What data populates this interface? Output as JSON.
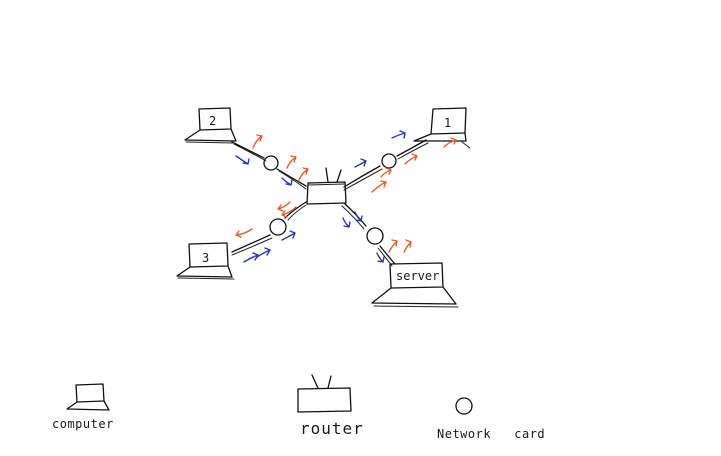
{
  "nodes": {
    "computer_1": {
      "label": "1"
    },
    "computer_2": {
      "label": "2"
    },
    "computer_3": {
      "label": "3"
    },
    "server": {
      "label": "server"
    }
  },
  "legend": {
    "computer": "computer",
    "router": "router",
    "network_card": "Network   card"
  },
  "colors": {
    "ink": "#111111",
    "outgoing_arrow": "#e0602f",
    "incoming_arrow": "#2b3aa8",
    "background": "#ffffff"
  },
  "icons": [
    "laptop-icon",
    "router-icon",
    "network-card-icon"
  ]
}
